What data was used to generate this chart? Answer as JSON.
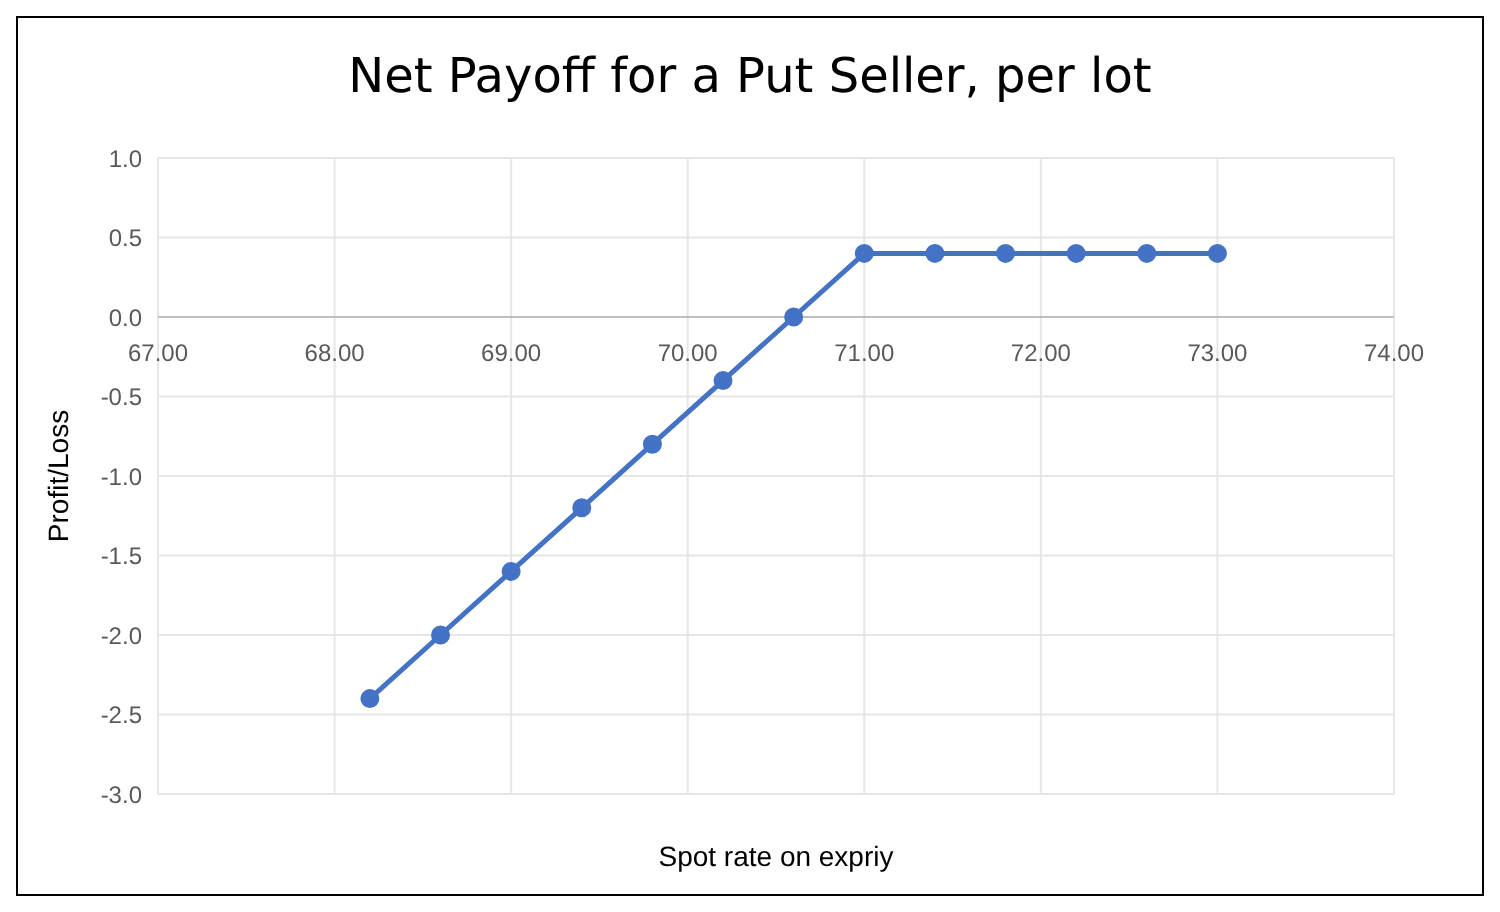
{
  "chart_data": {
    "type": "line",
    "title": "Net Payoff for a Put Seller, per lot",
    "xlabel": "Spot rate on expriy",
    "ylabel": "Profit/Loss",
    "x": [
      68.2,
      68.6,
      69.0,
      69.4,
      69.8,
      70.2,
      70.6,
      71.0,
      71.4,
      71.8,
      72.2,
      72.6,
      73.0
    ],
    "series": [
      {
        "color": "#4472c4",
        "values": [
          -2.4,
          -2.0,
          -1.6,
          -1.2,
          -0.8,
          -0.4,
          0.0,
          0.4,
          0.4,
          0.4,
          0.4,
          0.4,
          0.4
        ]
      }
    ],
    "xlim": [
      67,
      74
    ],
    "xticks": [
      {
        "value": 67,
        "label": "67.00"
      },
      {
        "value": 68,
        "label": "68.00"
      },
      {
        "value": 69,
        "label": "69.00"
      },
      {
        "value": 70,
        "label": "70.00"
      },
      {
        "value": 71,
        "label": "71.00"
      },
      {
        "value": 72,
        "label": "72.00"
      },
      {
        "value": 73,
        "label": "73.00"
      },
      {
        "value": 74,
        "label": "74.00"
      }
    ],
    "ylim": [
      -3,
      1
    ],
    "yticks": [
      {
        "value": -3,
        "label": "-3.0"
      },
      {
        "value": -2.5,
        "label": "-2.5"
      },
      {
        "value": -2,
        "label": "-2.0"
      },
      {
        "value": -1.5,
        "label": "-1.5"
      },
      {
        "value": -1,
        "label": "-1.0"
      },
      {
        "value": -0.5,
        "label": "-0.5"
      },
      {
        "value": 0,
        "label": "0.0"
      },
      {
        "value": 0.5,
        "label": "0.5"
      },
      {
        "value": 1,
        "label": "1.0"
      }
    ],
    "grid": true,
    "marker": "circle",
    "line_style": "solid",
    "legend": false
  }
}
